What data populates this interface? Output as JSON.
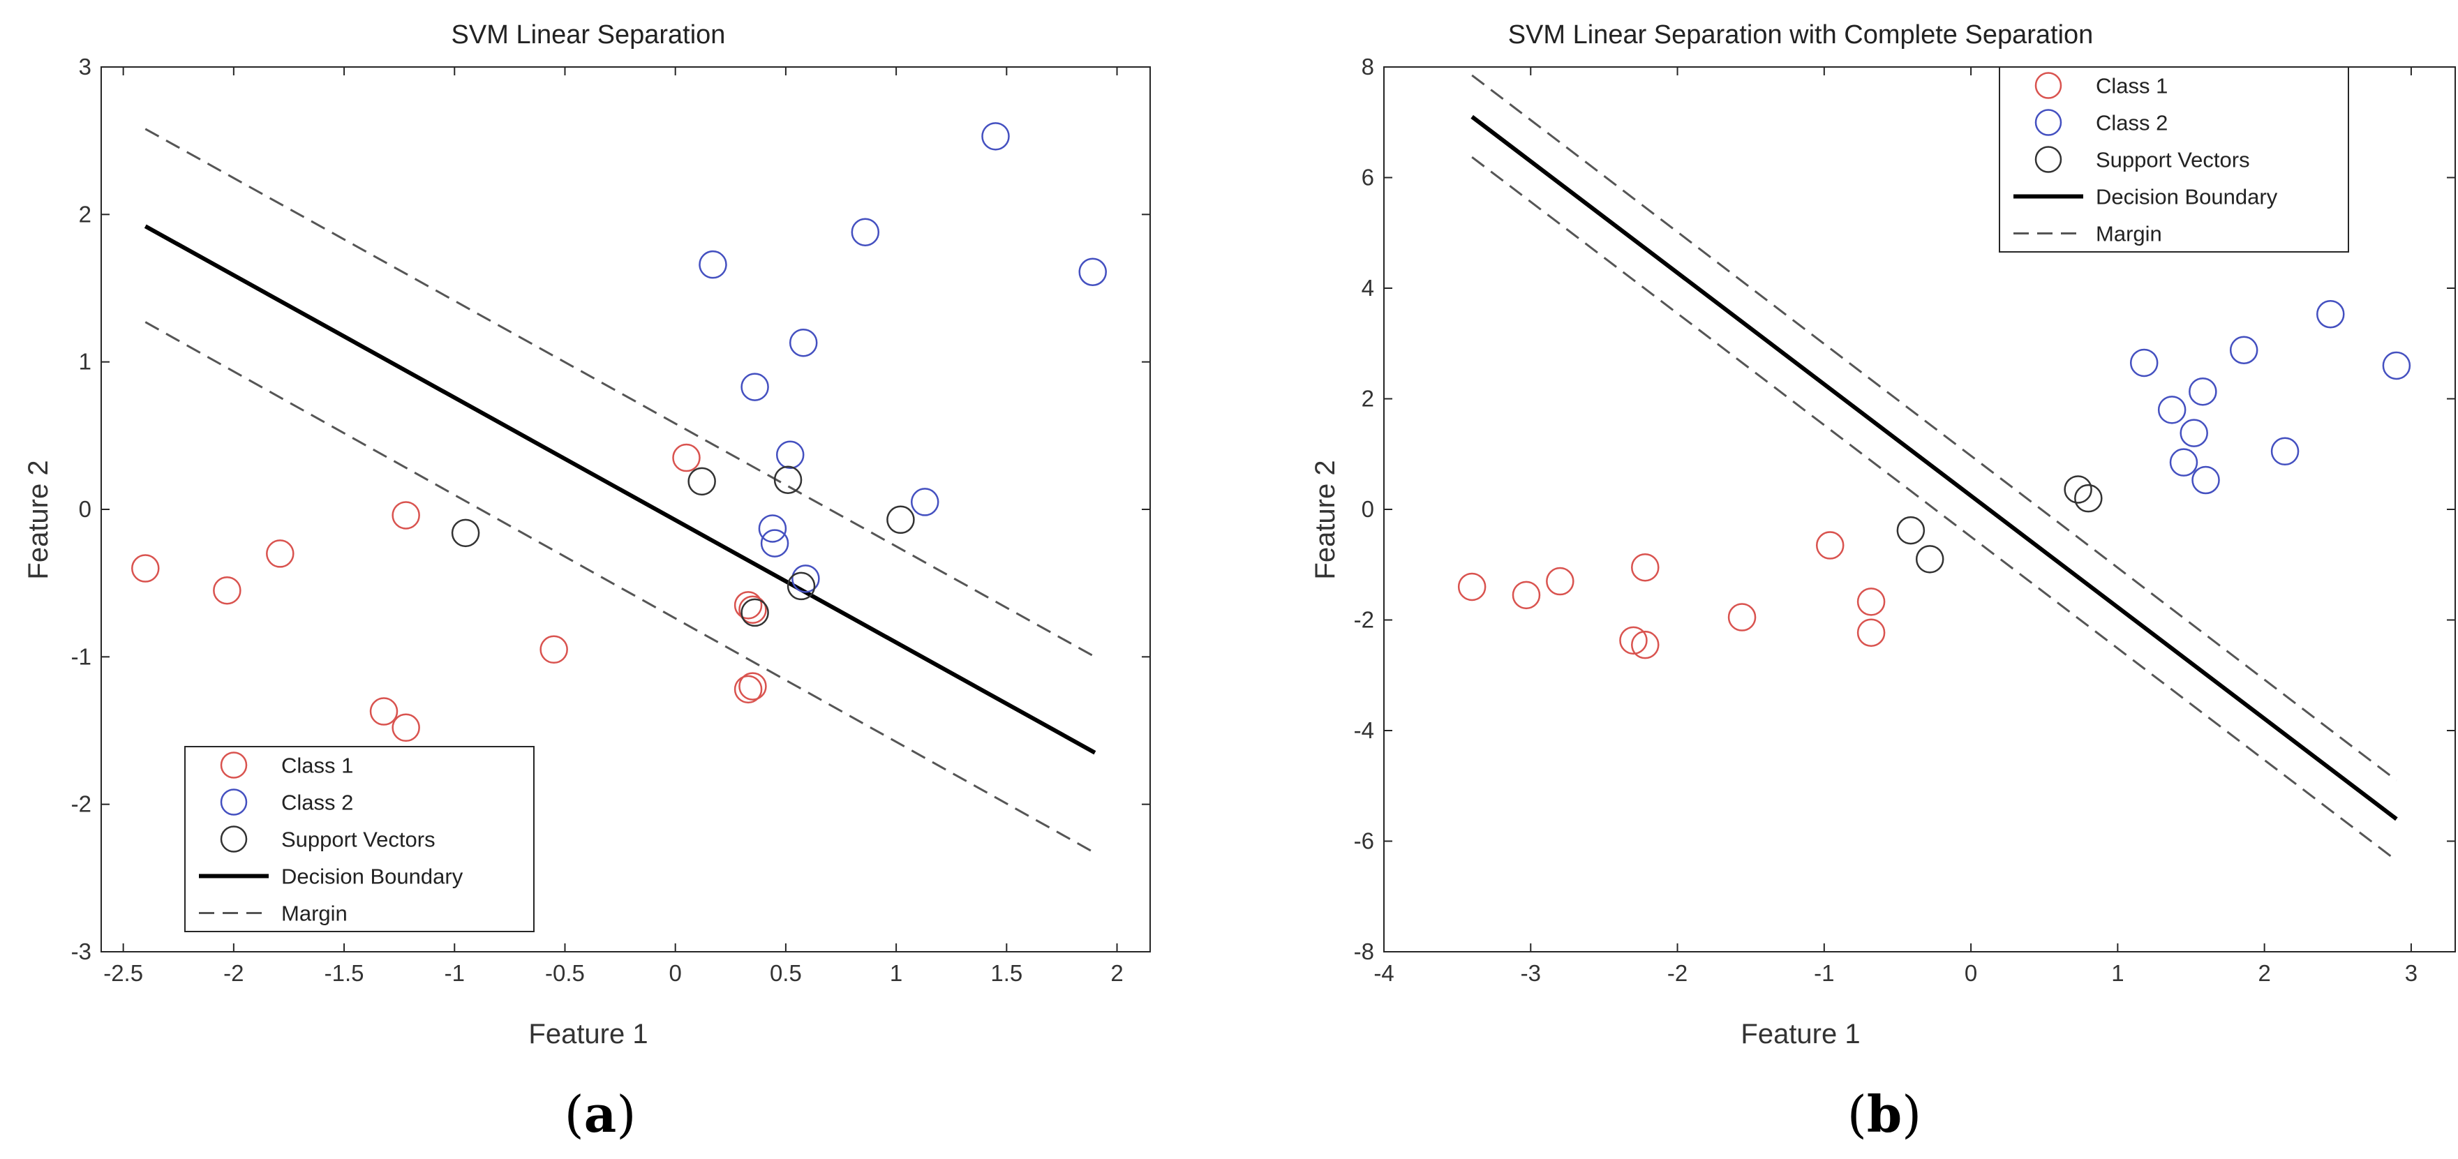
{
  "colors": {
    "class1": "#d9534f",
    "class2": "#4450c0",
    "support": "#333333",
    "boundary": "#000000",
    "margin": "#555555"
  },
  "chart_data": [
    {
      "type": "scatter",
      "title": "SVM Linear Separation",
      "xlabel": "Feature 1",
      "ylabel": "Feature 2",
      "xlim": [
        -2.6,
        2.15
      ],
      "ylim": [
        -3,
        3
      ],
      "xticks": [
        -2.5,
        -2,
        -1.5,
        -1,
        -0.5,
        0,
        0.5,
        1,
        1.5,
        2
      ],
      "xtick_labels": [
        "-2.5",
        "-2",
        "-1.5",
        "-1",
        "-0.5",
        "0",
        "0.5",
        "1",
        "1.5",
        "2"
      ],
      "yticks": [
        -3,
        -2,
        -1,
        0,
        1,
        2,
        3
      ],
      "ytick_labels": [
        "-3",
        "-2",
        "-1",
        "0",
        "1",
        "2",
        "3"
      ],
      "panel_label": "a",
      "legend_position": "bottom-left",
      "legend": [
        "Class 1",
        "Class 2",
        "Support Vectors",
        "Decision Boundary",
        "Margin"
      ],
      "series": [
        {
          "name": "Class 1",
          "marker": "circle",
          "color_key": "class1",
          "points": [
            [
              -2.4,
              -0.4
            ],
            [
              -2.03,
              -0.55
            ],
            [
              -1.79,
              -0.3
            ],
            [
              -1.22,
              -0.04
            ],
            [
              -0.55,
              -0.95
            ],
            [
              -1.32,
              -1.37
            ],
            [
              -1.22,
              -1.48
            ],
            [
              0.05,
              0.35
            ],
            [
              0.33,
              -0.65
            ],
            [
              0.35,
              -0.68
            ],
            [
              0.33,
              -1.22
            ],
            [
              0.35,
              -1.2
            ]
          ]
        },
        {
          "name": "Class 2",
          "marker": "circle",
          "color_key": "class2",
          "points": [
            [
              1.45,
              2.53
            ],
            [
              0.17,
              1.66
            ],
            [
              0.86,
              1.88
            ],
            [
              1.89,
              1.61
            ],
            [
              0.58,
              1.13
            ],
            [
              0.36,
              0.83
            ],
            [
              0.52,
              0.37
            ],
            [
              0.44,
              -0.13
            ],
            [
              0.45,
              -0.23
            ],
            [
              0.59,
              -0.47
            ],
            [
              1.13,
              0.05
            ]
          ]
        },
        {
          "name": "Support Vectors",
          "marker": "circle",
          "color_key": "support",
          "points": [
            [
              -0.95,
              -0.16
            ],
            [
              0.12,
              0.19
            ],
            [
              0.51,
              0.2
            ],
            [
              0.36,
              -0.7
            ],
            [
              0.57,
              -0.52
            ],
            [
              1.02,
              -0.07
            ]
          ]
        }
      ],
      "lines": [
        {
          "name": "Decision Boundary",
          "style": "solid",
          "x": [
            -2.4,
            1.9
          ],
          "y": [
            1.92,
            -1.65
          ]
        },
        {
          "name": "Margin",
          "style": "dashed",
          "x": [
            -2.4,
            1.9
          ],
          "y": [
            2.58,
            -1.0
          ]
        },
        {
          "name": "Margin",
          "style": "dashed",
          "x": [
            -2.4,
            1.9
          ],
          "y": [
            1.27,
            -2.33
          ]
        }
      ]
    },
    {
      "type": "scatter",
      "title": "SVM Linear Separation with Complete Separation",
      "xlabel": "Feature 1",
      "ylabel": "Feature 2",
      "xlim": [
        -4,
        3.3
      ],
      "ylim": [
        -8,
        8
      ],
      "xticks": [
        -4,
        -3,
        -2,
        -1,
        0,
        1,
        2,
        3
      ],
      "xtick_labels": [
        "-4",
        "-3",
        "-2",
        "-1",
        "0",
        "1",
        "2",
        "3"
      ],
      "yticks": [
        -8,
        -6,
        -4,
        -2,
        0,
        2,
        4,
        6,
        8
      ],
      "ytick_labels": [
        "-8",
        "-6",
        "-4",
        "-2",
        "0",
        "2",
        "4",
        "6",
        "8"
      ],
      "panel_label": "b",
      "legend_position": "top-right",
      "legend": [
        "Class 1",
        "Class 2",
        "Support Vectors",
        "Decision Boundary",
        "Margin"
      ],
      "series": [
        {
          "name": "Class 1",
          "marker": "circle",
          "color_key": "class1",
          "points": [
            [
              -3.4,
              -1.4
            ],
            [
              -3.03,
              -1.55
            ],
            [
              -2.8,
              -1.3
            ],
            [
              -2.3,
              -2.37
            ],
            [
              -2.22,
              -2.45
            ],
            [
              -2.22,
              -1.05
            ],
            [
              -1.56,
              -1.95
            ],
            [
              -0.96,
              -0.65
            ],
            [
              -0.68,
              -1.67
            ],
            [
              -0.68,
              -2.23
            ]
          ]
        },
        {
          "name": "Class 2",
          "marker": "circle",
          "color_key": "class2",
          "points": [
            [
              1.18,
              2.65
            ],
            [
              1.37,
              1.8
            ],
            [
              1.45,
              0.85
            ],
            [
              1.52,
              1.38
            ],
            [
              1.58,
              2.13
            ],
            [
              1.6,
              0.53
            ],
            [
              1.86,
              2.88
            ],
            [
              2.14,
              1.05
            ],
            [
              2.45,
              3.53
            ],
            [
              2.9,
              2.6
            ]
          ]
        },
        {
          "name": "Support Vectors",
          "marker": "circle",
          "color_key": "support",
          "points": [
            [
              -0.41,
              -0.38
            ],
            [
              -0.28,
              -0.9
            ],
            [
              0.73,
              0.36
            ],
            [
              0.8,
              0.2
            ]
          ]
        }
      ],
      "lines": [
        {
          "name": "Decision Boundary",
          "style": "solid",
          "x": [
            -3.4,
            2.9
          ],
          "y": [
            7.1,
            -5.6
          ]
        },
        {
          "name": "Margin",
          "style": "dashed",
          "x": [
            -3.4,
            2.9
          ],
          "y": [
            7.85,
            -4.9
          ]
        },
        {
          "name": "Margin",
          "style": "dashed",
          "x": [
            -3.4,
            2.9
          ],
          "y": [
            6.37,
            -6.35
          ]
        }
      ]
    }
  ]
}
